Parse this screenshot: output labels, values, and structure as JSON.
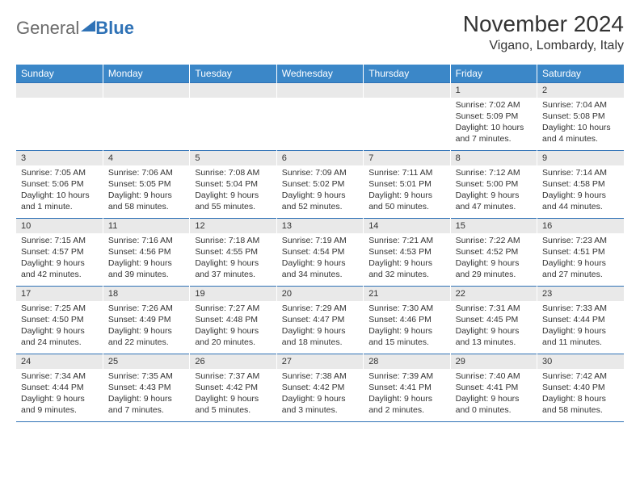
{
  "logo": {
    "part1": "General",
    "part2": "Blue"
  },
  "title": "November 2024",
  "location": "Vigano, Lombardy, Italy",
  "colors": {
    "header_bg": "#3b87c8",
    "header_text": "#ffffff",
    "date_bg": "#e9e9e9",
    "border": "#2f72b6",
    "text": "#333333",
    "logo_gray": "#6b6b6b",
    "logo_blue": "#2f72b6"
  },
  "weekdays": [
    "Sunday",
    "Monday",
    "Tuesday",
    "Wednesday",
    "Thursday",
    "Friday",
    "Saturday"
  ],
  "weeks": [
    [
      {
        "date": "",
        "sunrise": "",
        "sunset": "",
        "daylight": ""
      },
      {
        "date": "",
        "sunrise": "",
        "sunset": "",
        "daylight": ""
      },
      {
        "date": "",
        "sunrise": "",
        "sunset": "",
        "daylight": ""
      },
      {
        "date": "",
        "sunrise": "",
        "sunset": "",
        "daylight": ""
      },
      {
        "date": "",
        "sunrise": "",
        "sunset": "",
        "daylight": ""
      },
      {
        "date": "1",
        "sunrise": "Sunrise: 7:02 AM",
        "sunset": "Sunset: 5:09 PM",
        "daylight": "Daylight: 10 hours and 7 minutes."
      },
      {
        "date": "2",
        "sunrise": "Sunrise: 7:04 AM",
        "sunset": "Sunset: 5:08 PM",
        "daylight": "Daylight: 10 hours and 4 minutes."
      }
    ],
    [
      {
        "date": "3",
        "sunrise": "Sunrise: 7:05 AM",
        "sunset": "Sunset: 5:06 PM",
        "daylight": "Daylight: 10 hours and 1 minute."
      },
      {
        "date": "4",
        "sunrise": "Sunrise: 7:06 AM",
        "sunset": "Sunset: 5:05 PM",
        "daylight": "Daylight: 9 hours and 58 minutes."
      },
      {
        "date": "5",
        "sunrise": "Sunrise: 7:08 AM",
        "sunset": "Sunset: 5:04 PM",
        "daylight": "Daylight: 9 hours and 55 minutes."
      },
      {
        "date": "6",
        "sunrise": "Sunrise: 7:09 AM",
        "sunset": "Sunset: 5:02 PM",
        "daylight": "Daylight: 9 hours and 52 minutes."
      },
      {
        "date": "7",
        "sunrise": "Sunrise: 7:11 AM",
        "sunset": "Sunset: 5:01 PM",
        "daylight": "Daylight: 9 hours and 50 minutes."
      },
      {
        "date": "8",
        "sunrise": "Sunrise: 7:12 AM",
        "sunset": "Sunset: 5:00 PM",
        "daylight": "Daylight: 9 hours and 47 minutes."
      },
      {
        "date": "9",
        "sunrise": "Sunrise: 7:14 AM",
        "sunset": "Sunset: 4:58 PM",
        "daylight": "Daylight: 9 hours and 44 minutes."
      }
    ],
    [
      {
        "date": "10",
        "sunrise": "Sunrise: 7:15 AM",
        "sunset": "Sunset: 4:57 PM",
        "daylight": "Daylight: 9 hours and 42 minutes."
      },
      {
        "date": "11",
        "sunrise": "Sunrise: 7:16 AM",
        "sunset": "Sunset: 4:56 PM",
        "daylight": "Daylight: 9 hours and 39 minutes."
      },
      {
        "date": "12",
        "sunrise": "Sunrise: 7:18 AM",
        "sunset": "Sunset: 4:55 PM",
        "daylight": "Daylight: 9 hours and 37 minutes."
      },
      {
        "date": "13",
        "sunrise": "Sunrise: 7:19 AM",
        "sunset": "Sunset: 4:54 PM",
        "daylight": "Daylight: 9 hours and 34 minutes."
      },
      {
        "date": "14",
        "sunrise": "Sunrise: 7:21 AM",
        "sunset": "Sunset: 4:53 PM",
        "daylight": "Daylight: 9 hours and 32 minutes."
      },
      {
        "date": "15",
        "sunrise": "Sunrise: 7:22 AM",
        "sunset": "Sunset: 4:52 PM",
        "daylight": "Daylight: 9 hours and 29 minutes."
      },
      {
        "date": "16",
        "sunrise": "Sunrise: 7:23 AM",
        "sunset": "Sunset: 4:51 PM",
        "daylight": "Daylight: 9 hours and 27 minutes."
      }
    ],
    [
      {
        "date": "17",
        "sunrise": "Sunrise: 7:25 AM",
        "sunset": "Sunset: 4:50 PM",
        "daylight": "Daylight: 9 hours and 24 minutes."
      },
      {
        "date": "18",
        "sunrise": "Sunrise: 7:26 AM",
        "sunset": "Sunset: 4:49 PM",
        "daylight": "Daylight: 9 hours and 22 minutes."
      },
      {
        "date": "19",
        "sunrise": "Sunrise: 7:27 AM",
        "sunset": "Sunset: 4:48 PM",
        "daylight": "Daylight: 9 hours and 20 minutes."
      },
      {
        "date": "20",
        "sunrise": "Sunrise: 7:29 AM",
        "sunset": "Sunset: 4:47 PM",
        "daylight": "Daylight: 9 hours and 18 minutes."
      },
      {
        "date": "21",
        "sunrise": "Sunrise: 7:30 AM",
        "sunset": "Sunset: 4:46 PM",
        "daylight": "Daylight: 9 hours and 15 minutes."
      },
      {
        "date": "22",
        "sunrise": "Sunrise: 7:31 AM",
        "sunset": "Sunset: 4:45 PM",
        "daylight": "Daylight: 9 hours and 13 minutes."
      },
      {
        "date": "23",
        "sunrise": "Sunrise: 7:33 AM",
        "sunset": "Sunset: 4:44 PM",
        "daylight": "Daylight: 9 hours and 11 minutes."
      }
    ],
    [
      {
        "date": "24",
        "sunrise": "Sunrise: 7:34 AM",
        "sunset": "Sunset: 4:44 PM",
        "daylight": "Daylight: 9 hours and 9 minutes."
      },
      {
        "date": "25",
        "sunrise": "Sunrise: 7:35 AM",
        "sunset": "Sunset: 4:43 PM",
        "daylight": "Daylight: 9 hours and 7 minutes."
      },
      {
        "date": "26",
        "sunrise": "Sunrise: 7:37 AM",
        "sunset": "Sunset: 4:42 PM",
        "daylight": "Daylight: 9 hours and 5 minutes."
      },
      {
        "date": "27",
        "sunrise": "Sunrise: 7:38 AM",
        "sunset": "Sunset: 4:42 PM",
        "daylight": "Daylight: 9 hours and 3 minutes."
      },
      {
        "date": "28",
        "sunrise": "Sunrise: 7:39 AM",
        "sunset": "Sunset: 4:41 PM",
        "daylight": "Daylight: 9 hours and 2 minutes."
      },
      {
        "date": "29",
        "sunrise": "Sunrise: 7:40 AM",
        "sunset": "Sunset: 4:41 PM",
        "daylight": "Daylight: 9 hours and 0 minutes."
      },
      {
        "date": "30",
        "sunrise": "Sunrise: 7:42 AM",
        "sunset": "Sunset: 4:40 PM",
        "daylight": "Daylight: 8 hours and 58 minutes."
      }
    ]
  ]
}
